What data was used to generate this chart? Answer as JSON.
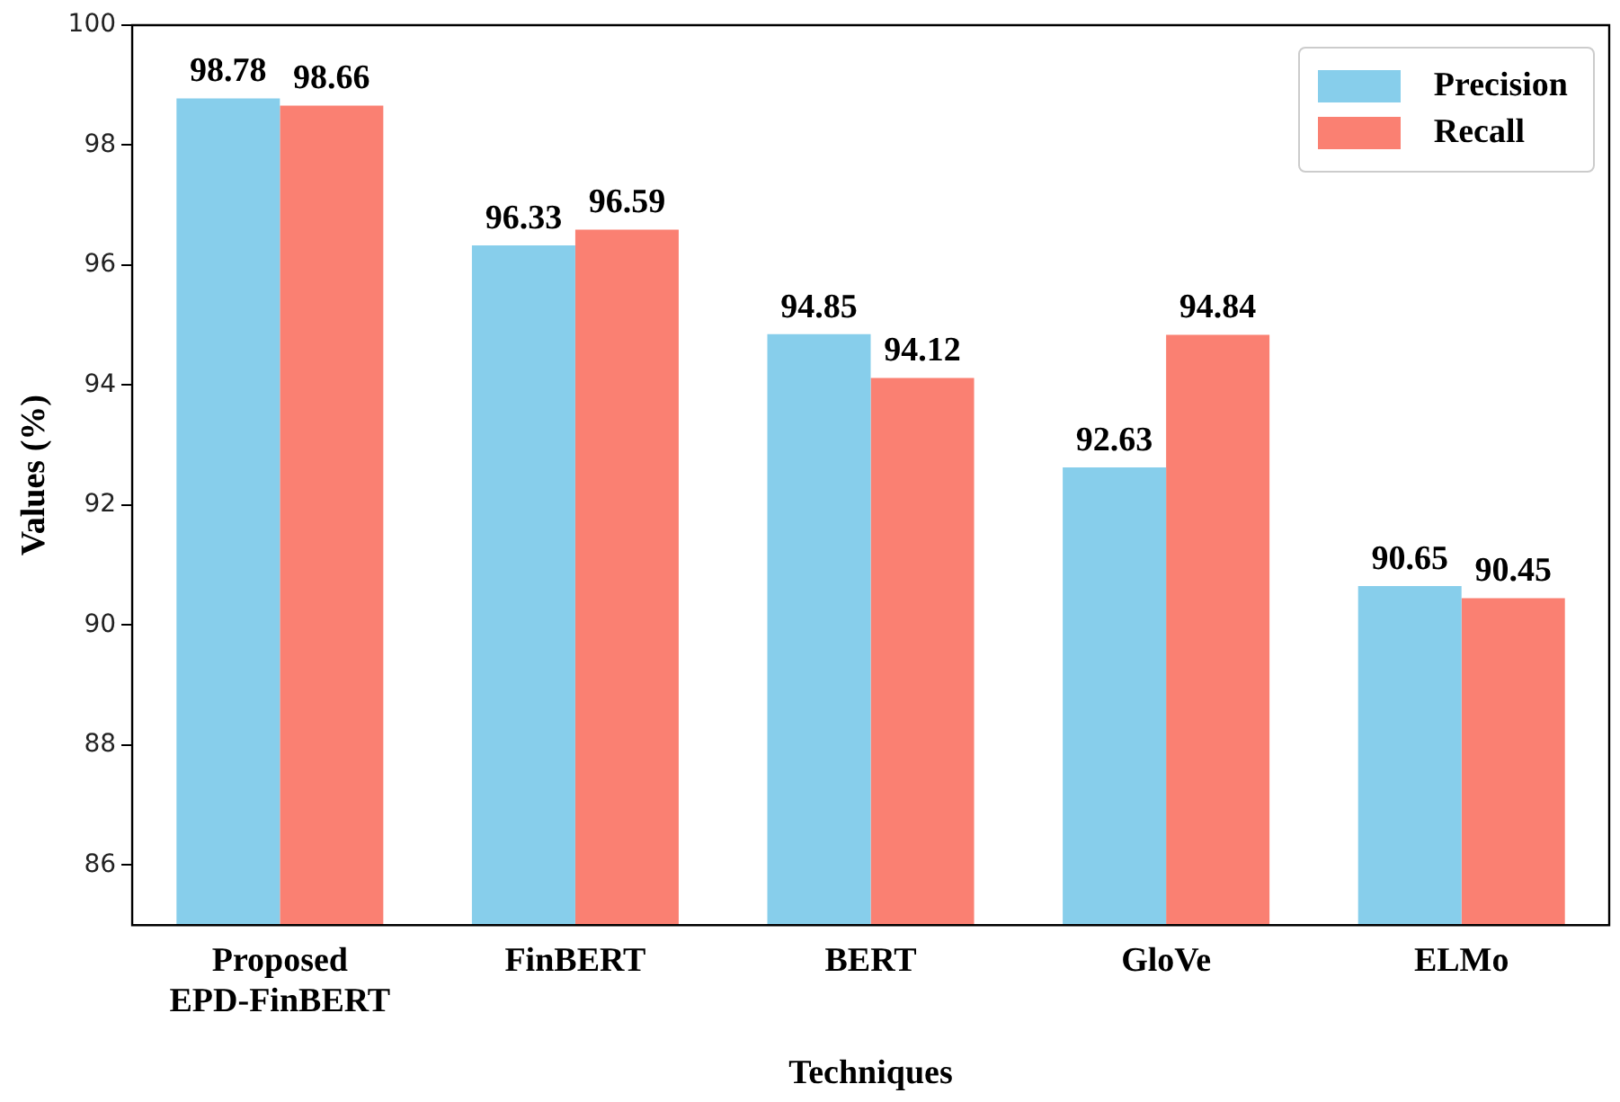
{
  "chart_data": {
    "type": "bar",
    "xlabel": "Techniques",
    "ylabel": "Values (%)",
    "categories": [
      "Proposed EPD-FinBERT",
      "FinBERT",
      "BERT",
      "GloVe",
      "ELMo"
    ],
    "series": [
      {
        "name": "Precision",
        "color": "#87ceeb",
        "values": [
          98.78,
          96.33,
          94.85,
          92.63,
          90.65
        ]
      },
      {
        "name": "Recall",
        "color": "#fa8072",
        "values": [
          98.66,
          96.59,
          94.12,
          94.84,
          90.45
        ]
      }
    ],
    "ylim": [
      85,
      100
    ],
    "yticks": [
      86,
      88,
      90,
      92,
      94,
      96,
      98,
      100
    ],
    "grid": false,
    "legend": "top right",
    "data_labels": true
  }
}
